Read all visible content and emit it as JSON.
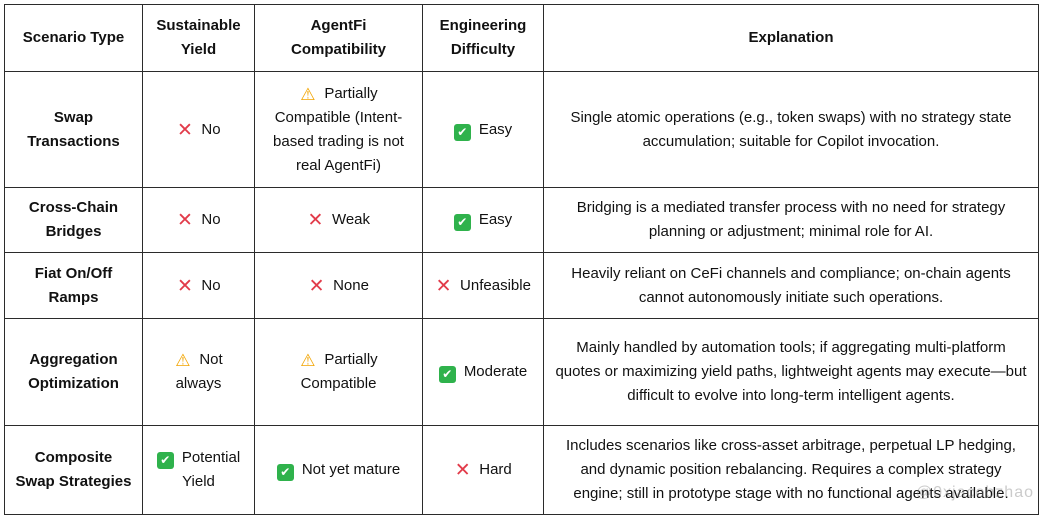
{
  "headers": [
    "Scenario Type",
    "Sustainable Yield",
    "AgentFi Compatibility",
    "Engineering Difficulty",
    "Explanation"
  ],
  "rows": [
    {
      "scenario": "Swap Transactions",
      "yield": {
        "icon": "cross-mark-icon",
        "text": "No"
      },
      "compat": {
        "icon": "warning-icon",
        "text": "Partially Compatible (Intent-based trading is not real AgentFi)"
      },
      "difficulty": {
        "icon": "check-mark-icon",
        "text": "Easy"
      },
      "explanation": "Single atomic operations (e.g., token swaps) with no strategy state accumulation; suitable for Copilot invocation."
    },
    {
      "scenario": "Cross-Chain Bridges",
      "yield": {
        "icon": "cross-mark-icon",
        "text": "No"
      },
      "compat": {
        "icon": "cross-mark-icon",
        "text": "Weak"
      },
      "difficulty": {
        "icon": "check-mark-icon",
        "text": "Easy"
      },
      "explanation": "Bridging is a mediated transfer process with no need for strategy planning or adjustment; minimal role for AI."
    },
    {
      "scenario": "Fiat On/Off Ramps",
      "yield": {
        "icon": "cross-mark-icon",
        "text": "No"
      },
      "compat": {
        "icon": "cross-mark-icon",
        "text": "None"
      },
      "difficulty": {
        "icon": "cross-mark-icon",
        "text": "Unfeasible"
      },
      "explanation": "Heavily reliant on CeFi channels and compliance; on-chain agents cannot autonomously initiate such operations."
    },
    {
      "scenario": "Aggregation Optimization",
      "yield": {
        "icon": "warning-icon",
        "text": "Not always"
      },
      "compat": {
        "icon": "warning-icon",
        "text": "Partially Compatible"
      },
      "difficulty": {
        "icon": "check-mark-icon",
        "text": "Moderate"
      },
      "explanation": "Mainly handled by automation tools; if aggregating multi-platform quotes or maximizing yield paths, lightweight agents may execute—but difficult to evolve into long-term intelligent agents."
    },
    {
      "scenario": "Composite Swap Strategies",
      "yield": {
        "icon": "check-mark-icon",
        "text": "Potential Yield"
      },
      "compat": {
        "icon": "check-mark-icon",
        "text": "Not yet mature"
      },
      "difficulty": {
        "icon": "cross-mark-icon",
        "text": "Hard"
      },
      "explanation": "Includes scenarios like cross-asset arbitrage, perpetual LP hedging, and dynamic position rebalancing. Requires a complex strategy engine; still in prototype stage with no functional agents available."
    }
  ],
  "watermark": "@0xjacobzhao",
  "colors": {
    "cross": "#e23b4a",
    "check": "#2fb24c",
    "warning": "#f2a400",
    "border": "#2b2b2b"
  }
}
